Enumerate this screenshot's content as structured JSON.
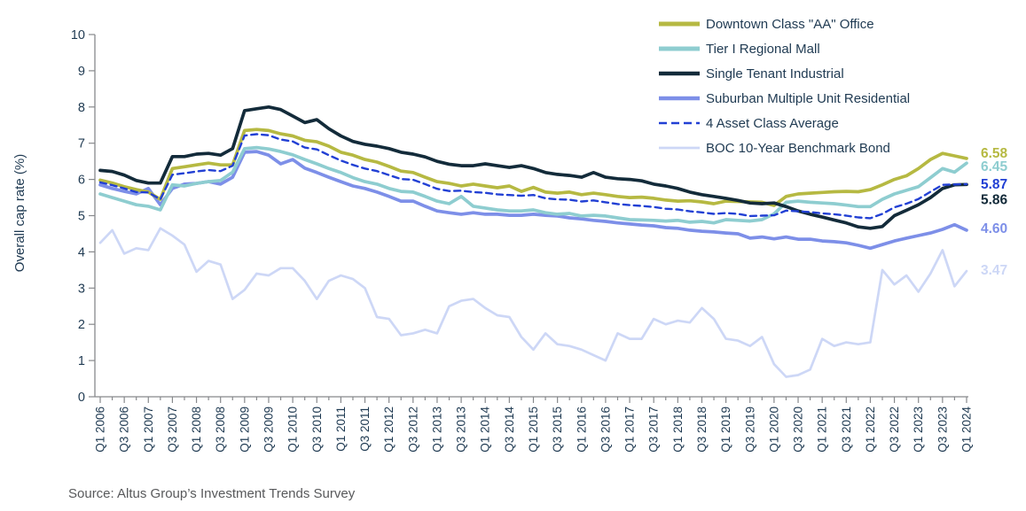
{
  "y_axis": {
    "title": "Overall cap rate (%)",
    "min": 0,
    "max": 10,
    "tick_step": 1,
    "tick_labels": [
      "0",
      "1",
      "2",
      "3",
      "4",
      "5",
      "6",
      "7",
      "8",
      "9",
      "10"
    ]
  },
  "x_axis": {
    "tick_labels": [
      "Q1 2006",
      "Q3 2006",
      "Q1 2007",
      "Q3 2007",
      "Q1 2008",
      "Q3 2008",
      "Q1 2009",
      "Q3 2009",
      "Q1 2010",
      "Q3 2010",
      "Q1 2011",
      "Q3 2011",
      "Q1 2012",
      "Q3 2012",
      "Q1 2013",
      "Q3 2013",
      "Q1 2014",
      "Q3 2014",
      "Q1 2015",
      "Q3 2015",
      "Q1 2016",
      "Q3 2016",
      "Q1 2017",
      "Q3 2017",
      "Q1 2018",
      "Q3 2018",
      "Q1 2019",
      "Q3 2019",
      "Q1 2020",
      "Q3 2020",
      "Q1 2021",
      "Q3 2021",
      "Q1 2022",
      "Q3 2022",
      "Q1 2023",
      "Q3 2023",
      "Q1 2024"
    ],
    "minor_ticks": "every unlabeled quarter"
  },
  "source": "Source:  Altus Group’s Investment Trends Survey",
  "colors": {
    "axis": "#87898c",
    "tick_text": "#1f3a52",
    "legend_text": "#1f3a52",
    "source_text": "#58595b",
    "background": "#ffffff"
  },
  "chart_data": {
    "type": "line",
    "x_start": "Q1 2006",
    "x_end": "Q1 2024",
    "frequency": "quarterly",
    "points_per_series": 73,
    "ylim": [
      0,
      10
    ],
    "grid": false,
    "legend_position": "top-right",
    "series": [
      {
        "name": "Downtown Class \"AA\" Office",
        "color": "#b6b942",
        "style": "solid",
        "end_label": "6.58",
        "values": [
          5.98,
          5.9,
          5.8,
          5.72,
          5.65,
          5.45,
          6.3,
          6.35,
          6.4,
          6.45,
          6.4,
          6.4,
          7.35,
          7.38,
          7.35,
          7.26,
          7.2,
          7.08,
          7.04,
          6.92,
          6.75,
          6.67,
          6.55,
          6.48,
          6.36,
          6.23,
          6.19,
          6.06,
          5.94,
          5.89,
          5.82,
          5.87,
          5.82,
          5.77,
          5.82,
          5.67,
          5.78,
          5.65,
          5.62,
          5.65,
          5.58,
          5.62,
          5.58,
          5.53,
          5.5,
          5.51,
          5.48,
          5.43,
          5.4,
          5.41,
          5.38,
          5.33,
          5.4,
          5.39,
          5.38,
          5.37,
          5.28,
          5.53,
          5.6,
          5.62,
          5.64,
          5.66,
          5.67,
          5.66,
          5.72,
          5.85,
          6.0,
          6.1,
          6.3,
          6.55,
          6.72,
          6.65,
          6.58
        ]
      },
      {
        "name": "Tier I Regional Mall",
        "color": "#8ecdd0",
        "style": "solid",
        "end_label": "6.45",
        "values": [
          5.6,
          5.5,
          5.4,
          5.3,
          5.26,
          5.16,
          5.85,
          5.82,
          5.89,
          5.94,
          5.97,
          6.2,
          6.85,
          6.88,
          6.84,
          6.77,
          6.68,
          6.55,
          6.43,
          6.3,
          6.19,
          6.05,
          5.94,
          5.87,
          5.75,
          5.67,
          5.65,
          5.53,
          5.4,
          5.33,
          5.53,
          5.26,
          5.21,
          5.16,
          5.13,
          5.13,
          5.16,
          5.08,
          5.04,
          5.06,
          4.99,
          5.01,
          4.99,
          4.94,
          4.89,
          4.88,
          4.87,
          4.85,
          4.87,
          4.82,
          4.84,
          4.8,
          4.89,
          4.87,
          4.85,
          4.89,
          5.05,
          5.37,
          5.4,
          5.37,
          5.35,
          5.33,
          5.29,
          5.25,
          5.25,
          5.45,
          5.6,
          5.7,
          5.8,
          6.05,
          6.3,
          6.2,
          6.45
        ]
      },
      {
        "name": "Single Tenant Industrial",
        "color": "#132b3a",
        "style": "solid",
        "end_label": "5.86",
        "values": [
          6.25,
          6.22,
          6.12,
          5.97,
          5.9,
          5.9,
          6.63,
          6.63,
          6.7,
          6.72,
          6.67,
          6.85,
          7.9,
          7.95,
          8.0,
          7.93,
          7.75,
          7.57,
          7.65,
          7.4,
          7.2,
          7.05,
          6.97,
          6.92,
          6.85,
          6.75,
          6.7,
          6.62,
          6.5,
          6.42,
          6.38,
          6.38,
          6.43,
          6.38,
          6.33,
          6.38,
          6.3,
          6.19,
          6.14,
          6.11,
          6.06,
          6.19,
          6.06,
          6.02,
          6.0,
          5.96,
          5.87,
          5.82,
          5.75,
          5.65,
          5.58,
          5.53,
          5.48,
          5.42,
          5.35,
          5.33,
          5.35,
          5.25,
          5.13,
          5.04,
          4.96,
          4.88,
          4.8,
          4.69,
          4.65,
          4.7,
          5.0,
          5.15,
          5.3,
          5.5,
          5.75,
          5.85,
          5.86
        ]
      },
      {
        "name": "Suburban Multiple Unit Residential",
        "color": "#7d8fe8",
        "style": "solid",
        "end_label": "4.60",
        "values": [
          5.85,
          5.75,
          5.67,
          5.6,
          5.75,
          5.3,
          5.75,
          5.87,
          5.89,
          5.94,
          5.87,
          6.06,
          6.75,
          6.77,
          6.67,
          6.43,
          6.55,
          6.31,
          6.19,
          6.06,
          5.94,
          5.82,
          5.75,
          5.65,
          5.53,
          5.4,
          5.4,
          5.26,
          5.13,
          5.08,
          5.04,
          5.08,
          5.04,
          5.04,
          5.01,
          5.01,
          5.04,
          5.01,
          4.99,
          4.94,
          4.91,
          4.87,
          4.84,
          4.8,
          4.77,
          4.74,
          4.72,
          4.67,
          4.65,
          4.6,
          4.57,
          4.55,
          4.52,
          4.5,
          4.38,
          4.41,
          4.36,
          4.41,
          4.35,
          4.35,
          4.3,
          4.28,
          4.25,
          4.18,
          4.1,
          4.2,
          4.3,
          4.38,
          4.45,
          4.52,
          4.62,
          4.75,
          4.6
        ]
      },
      {
        "name": "4 Asset Class Average",
        "color": "#2240d4",
        "style": "dashed",
        "end_label": "5.87",
        "values": [
          5.92,
          5.84,
          5.75,
          5.65,
          5.64,
          5.45,
          6.13,
          6.17,
          6.22,
          6.26,
          6.23,
          6.38,
          7.21,
          7.25,
          7.22,
          7.1,
          7.05,
          6.88,
          6.83,
          6.67,
          6.52,
          6.4,
          6.3,
          6.23,
          6.12,
          6.01,
          5.99,
          5.87,
          5.74,
          5.68,
          5.69,
          5.65,
          5.63,
          5.59,
          5.57,
          5.55,
          5.57,
          5.48,
          5.45,
          5.44,
          5.39,
          5.42,
          5.37,
          5.32,
          5.29,
          5.27,
          5.24,
          5.19,
          5.17,
          5.12,
          5.09,
          5.05,
          5.07,
          5.05,
          4.99,
          5.0,
          5.01,
          5.14,
          5.12,
          5.1,
          5.06,
          5.04,
          5.0,
          4.95,
          4.93,
          5.05,
          5.23,
          5.33,
          5.46,
          5.66,
          5.85,
          5.86,
          5.87
        ]
      },
      {
        "name": "BOC 10-Year Benchmark Bond",
        "color": "#cdd7f6",
        "style": "solid",
        "end_label": "3.47",
        "values": [
          4.25,
          4.6,
          3.95,
          4.1,
          4.05,
          4.65,
          4.45,
          4.2,
          3.45,
          3.75,
          3.65,
          2.7,
          2.95,
          3.4,
          3.35,
          3.55,
          3.55,
          3.2,
          2.7,
          3.2,
          3.35,
          3.25,
          3.0,
          2.2,
          2.15,
          1.7,
          1.75,
          1.85,
          1.75,
          2.5,
          2.65,
          2.7,
          2.45,
          2.25,
          2.2,
          1.65,
          1.3,
          1.75,
          1.45,
          1.4,
          1.3,
          1.15,
          1.0,
          1.75,
          1.6,
          1.6,
          2.15,
          2.0,
          2.1,
          2.05,
          2.45,
          2.15,
          1.6,
          1.55,
          1.4,
          1.65,
          0.9,
          0.55,
          0.6,
          0.75,
          1.6,
          1.4,
          1.5,
          1.45,
          1.5,
          3.5,
          3.1,
          3.35,
          2.9,
          3.4,
          4.05,
          3.05,
          3.47
        ]
      }
    ]
  }
}
